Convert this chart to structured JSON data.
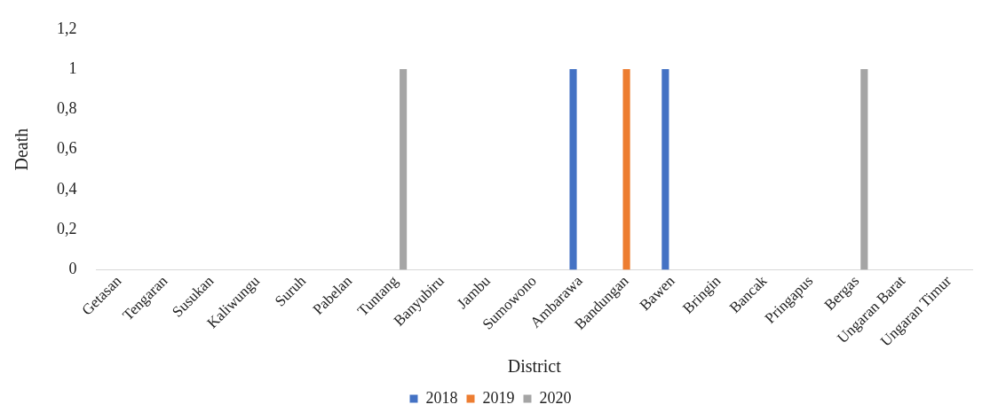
{
  "chart_data": {
    "type": "bar",
    "xlabel": "District",
    "ylabel": "Death",
    "categories": [
      "Getasan",
      "Tengaran",
      "Susukan",
      "Kaliwungu",
      "Suruh",
      "Pabelan",
      "Tuntang",
      "Banyubiru",
      "Jambu",
      "Sumowono",
      "Ambarawa",
      "Bandungan",
      "Bawen",
      "Bringin",
      "Bancak",
      "Pringapus",
      "Bergas",
      "Ungaran Barat",
      "Ungaran Timur"
    ],
    "series": [
      {
        "name": "2018",
        "color": "#4472c4",
        "values": [
          0,
          0,
          0,
          0,
          0,
          0,
          0,
          0,
          0,
          0,
          1,
          0,
          1,
          0,
          0,
          0,
          0,
          0,
          0
        ]
      },
      {
        "name": "2019",
        "color": "#ed7d31",
        "values": [
          0,
          0,
          0,
          0,
          0,
          0,
          0,
          0,
          0,
          0,
          0,
          1,
          0,
          0,
          0,
          0,
          0,
          0,
          0
        ]
      },
      {
        "name": "2020",
        "color": "#a5a5a5",
        "values": [
          0,
          0,
          0,
          0,
          0,
          0,
          1,
          0,
          0,
          0,
          0,
          0,
          0,
          0,
          0,
          0,
          1,
          0,
          0
        ]
      }
    ],
    "ylim": [
      0,
      1.2
    ],
    "yticks": [
      0,
      {
        "value": 0.2,
        "label": "0,2"
      },
      {
        "value": 0.4,
        "label": "0,4"
      },
      {
        "value": 0.6,
        "label": "0,6"
      },
      {
        "value": 0.8,
        "label": "0,8"
      },
      1,
      {
        "value": 1.2,
        "label": "1,2"
      }
    ],
    "grid": false,
    "legend": "bottom"
  }
}
